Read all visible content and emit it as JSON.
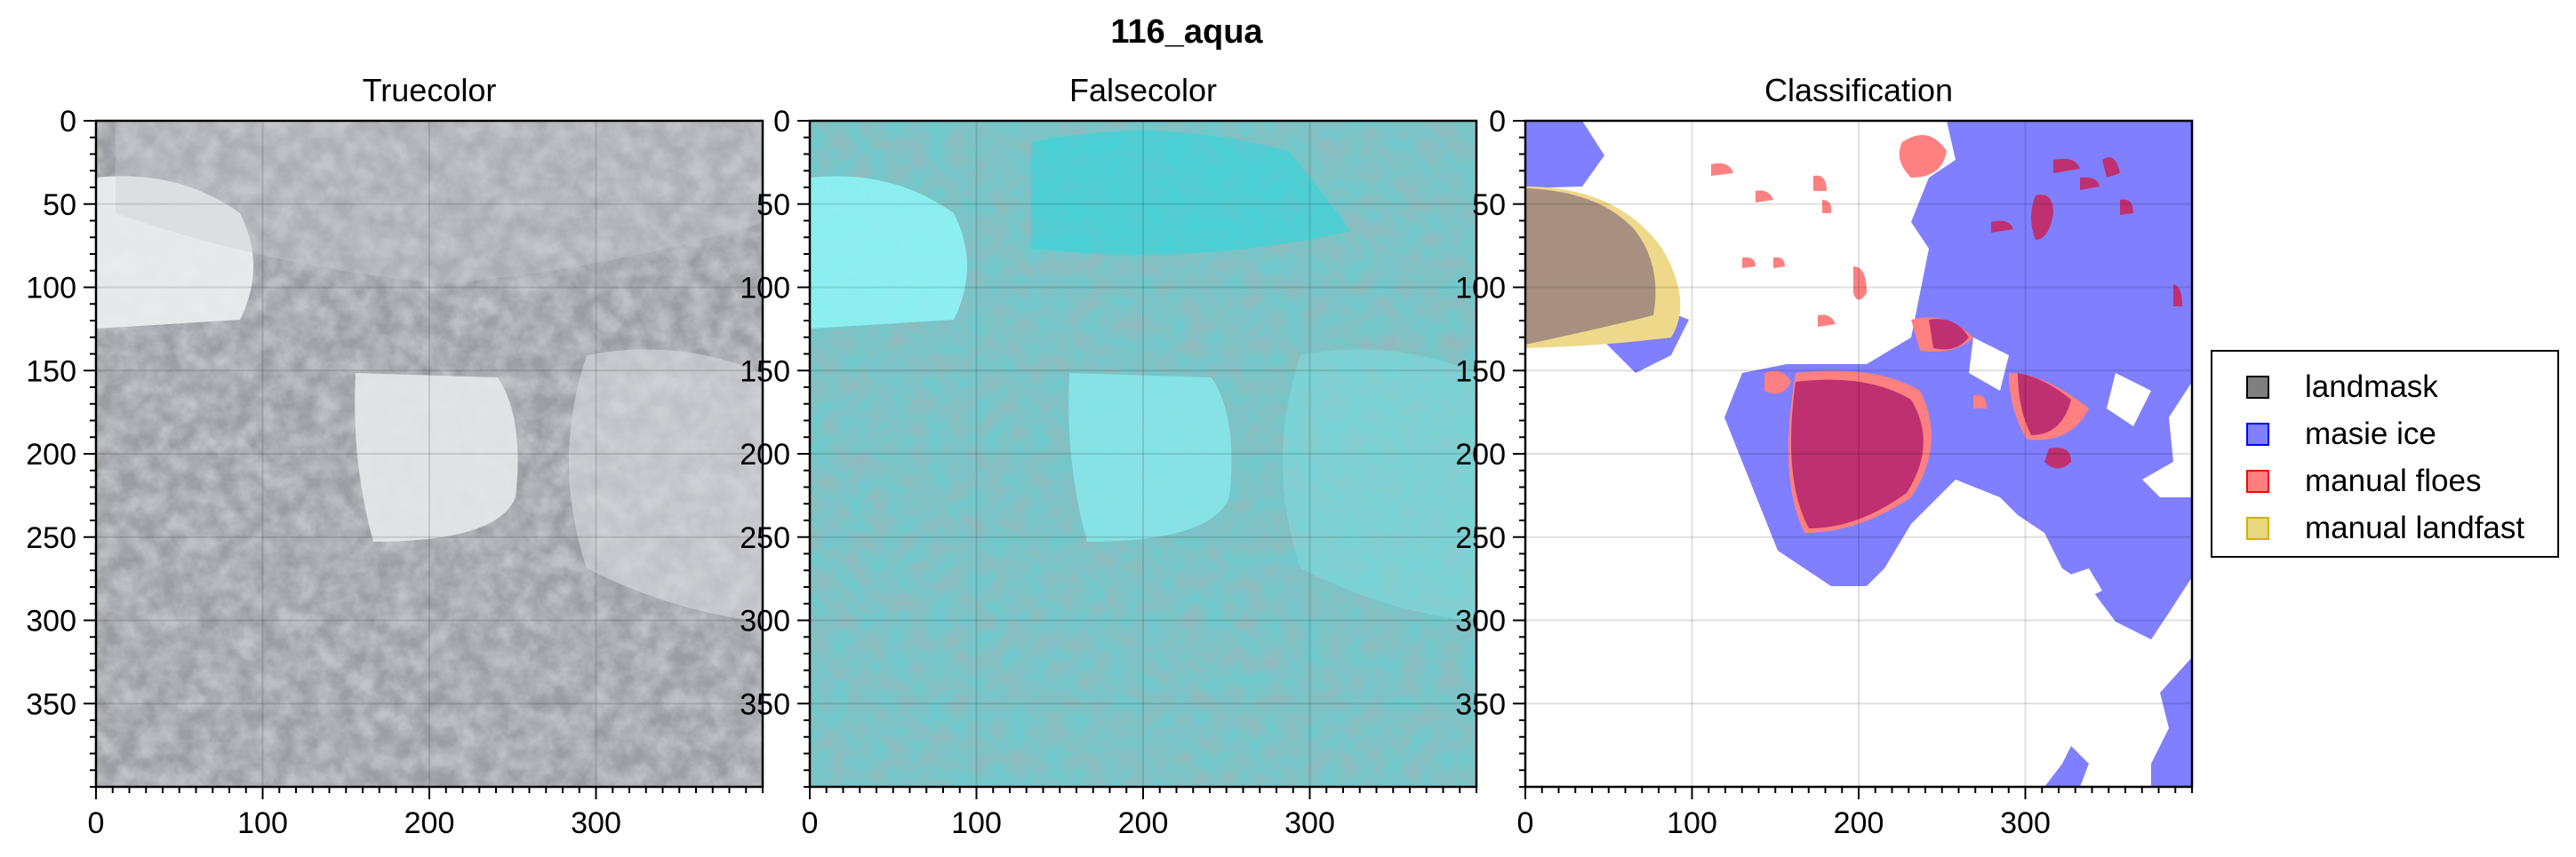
{
  "figure": {
    "title": "116_aqua"
  },
  "panels": [
    {
      "id": "truecolor",
      "title": "Truecolor"
    },
    {
      "id": "falsecolor",
      "title": "Falsecolor"
    },
    {
      "id": "classification",
      "title": "Classification"
    }
  ],
  "chart_data": {
    "type": "heatmap",
    "title": "116_aqua",
    "panels": [
      "Truecolor",
      "Falsecolor",
      "Classification"
    ],
    "xlim": [
      0,
      400
    ],
    "ylim": [
      400,
      0
    ],
    "xticks": [
      0,
      100,
      200,
      300
    ],
    "yticks": [
      0,
      50,
      100,
      150,
      200,
      250,
      300,
      350
    ],
    "xlabel": "",
    "ylabel": "",
    "grid": true,
    "legend": {
      "placement": "right",
      "entries": [
        {
          "label": "landmask",
          "color": "#000000",
          "alpha": 0.5
        },
        {
          "label": "masie ice",
          "color": "#0000ff",
          "alpha": 0.5
        },
        {
          "label": "manual floes",
          "color": "#ff0000",
          "alpha": 0.5
        },
        {
          "label": "manual landfast",
          "color": "#d4b000",
          "alpha": 0.5
        }
      ]
    }
  },
  "colors": {
    "sea_ice_gray": "#8e9297",
    "floe_white": "#e8eaec",
    "falsecolor_cyan": "#5fd4d8",
    "masie_blue": "#7f7fff",
    "floe_red": "#ff8080",
    "overlap_crimson": "#bf3070",
    "landfast_land": "#a89080",
    "landfast_yellow": "#eed98a"
  }
}
